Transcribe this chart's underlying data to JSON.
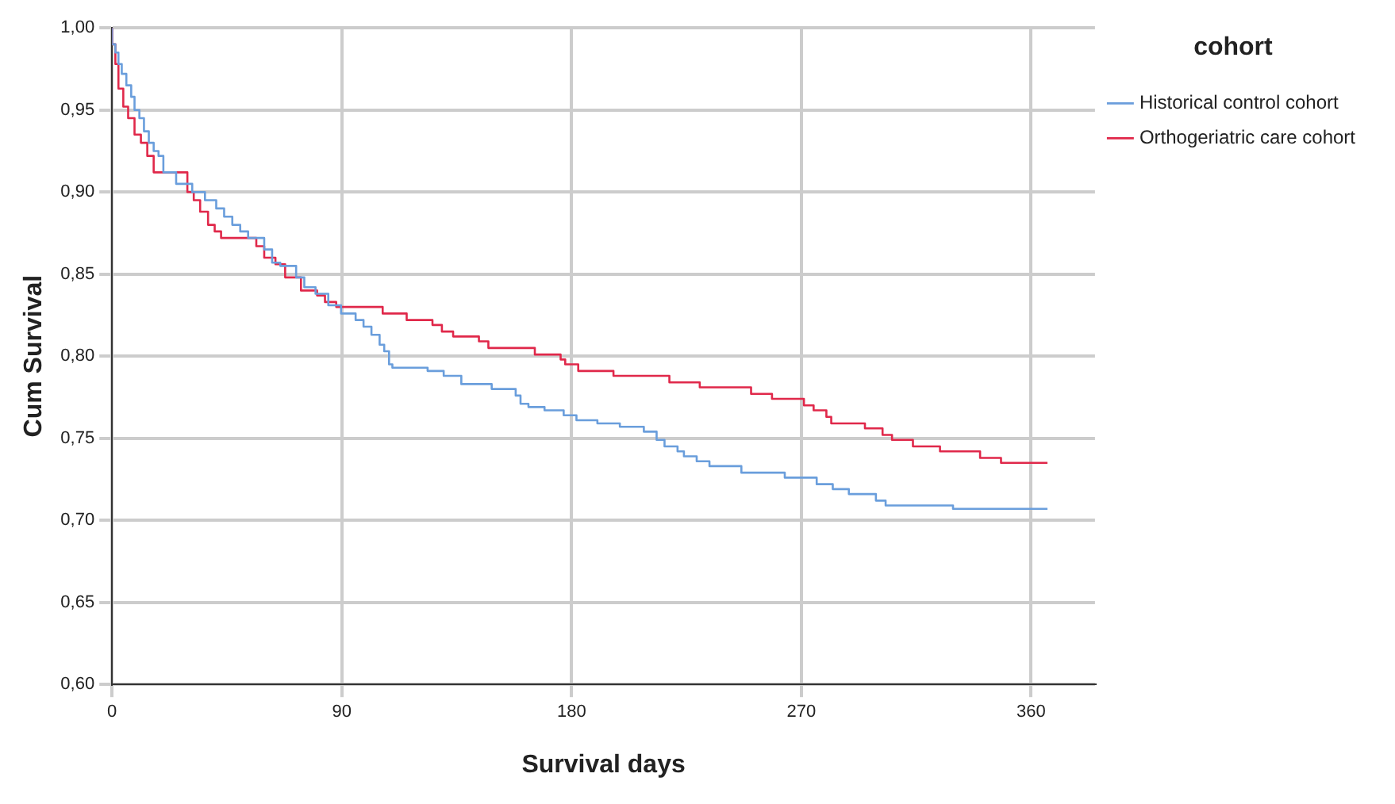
{
  "chart_data": {
    "type": "step",
    "xlabel": "Survival days",
    "ylabel": "Cum Survival",
    "legend_title": "cohort",
    "legend": "top right",
    "grid": true,
    "marker": "none",
    "line_style": "solid",
    "xlim": [
      0,
      385
    ],
    "xticks": [
      0,
      90,
      180,
      270,
      360
    ],
    "ylim": [
      0.6,
      1.0
    ],
    "yticks": [
      {
        "value": 0.6,
        "label": "0,60"
      },
      {
        "value": 0.65,
        "label": "0,65"
      },
      {
        "value": 0.7,
        "label": "0,70"
      },
      {
        "value": 0.75,
        "label": "0,75"
      },
      {
        "value": 0.8,
        "label": "0,80"
      },
      {
        "value": 0.85,
        "label": "0,85"
      },
      {
        "value": 0.9,
        "label": "0,90"
      },
      {
        "value": 0.95,
        "label": "0,95"
      },
      {
        "value": 1.0,
        "label": "1,00"
      }
    ],
    "series": [
      {
        "name": "Historical control cohort",
        "color": "#6a9edc",
        "x": [
          0,
          1.3,
          2.5,
          3.8,
          5.6,
          7.5,
          8.8,
          10.7,
          12.5,
          14.4,
          16.3,
          18.2,
          20.1,
          25.1,
          31.4,
          36.4,
          40.8,
          43.9,
          47.1,
          50.2,
          53.3,
          59.6,
          62.7,
          65.9,
          72.1,
          75.3,
          79.7,
          84.7,
          89.7,
          95.4,
          98.5,
          101.6,
          104.8,
          106.6,
          108.5,
          109.8,
          123.6,
          129.9,
          136.8,
          148.7,
          158.1,
          160,
          163.1,
          169.4,
          176.9,
          181.9,
          190.1,
          198.9,
          208.3,
          213.3,
          216.4,
          221.5,
          224,
          229,
          234,
          246.5,
          263.5,
          276,
          282.3,
          288.6,
          299.2,
          303,
          329.4,
          362,
          366.4
        ],
        "values": [
          1.0,
          0.99,
          0.985,
          0.978,
          0.972,
          0.965,
          0.958,
          0.95,
          0.945,
          0.937,
          0.93,
          0.925,
          0.922,
          0.912,
          0.905,
          0.9,
          0.895,
          0.89,
          0.885,
          0.88,
          0.876,
          0.872,
          0.865,
          0.857,
          0.855,
          0.848,
          0.842,
          0.838,
          0.831,
          0.826,
          0.822,
          0.818,
          0.813,
          0.807,
          0.803,
          0.795,
          0.793,
          0.791,
          0.788,
          0.783,
          0.78,
          0.776,
          0.771,
          0.769,
          0.767,
          0.764,
          0.761,
          0.759,
          0.757,
          0.754,
          0.749,
          0.745,
          0.742,
          0.739,
          0.736,
          0.733,
          0.729,
          0.726,
          0.722,
          0.719,
          0.716,
          0.712,
          0.709,
          0.707,
          0.707
        ]
      },
      {
        "name": "Orthogeriatric care cohort",
        "color": "#e0284a",
        "x": [
          0,
          1.3,
          2.5,
          4.4,
          6.3,
          8.8,
          11.3,
          13.8,
          16.3,
          29.5,
          32,
          34.5,
          37.6,
          40.2,
          42.7,
          56.5,
          59.6,
          64,
          67.8,
          74,
          80.3,
          83.4,
          87.8,
          106,
          115.4,
          125.5,
          129.2,
          133.6,
          143.7,
          147.4,
          165.6,
          175.7,
          177.5,
          182.6,
          196.4,
          218.3,
          230.2,
          250.3,
          258.5,
          271,
          274.8,
          279.8,
          281.7,
          294.9,
          301.8,
          305.5,
          313.7,
          324.3,
          340,
          348.2,
          365.1,
          366.4
        ],
        "values": [
          1.0,
          0.99,
          0.978,
          0.963,
          0.952,
          0.945,
          0.935,
          0.93,
          0.922,
          0.912,
          0.9,
          0.895,
          0.888,
          0.88,
          0.876,
          0.872,
          0.867,
          0.86,
          0.856,
          0.848,
          0.84,
          0.837,
          0.833,
          0.83,
          0.826,
          0.822,
          0.819,
          0.815,
          0.812,
          0.809,
          0.805,
          0.801,
          0.798,
          0.795,
          0.791,
          0.788,
          0.784,
          0.781,
          0.777,
          0.774,
          0.77,
          0.767,
          0.763,
          0.759,
          0.756,
          0.752,
          0.749,
          0.745,
          0.742,
          0.738,
          0.735,
          0.735
        ]
      }
    ]
  }
}
